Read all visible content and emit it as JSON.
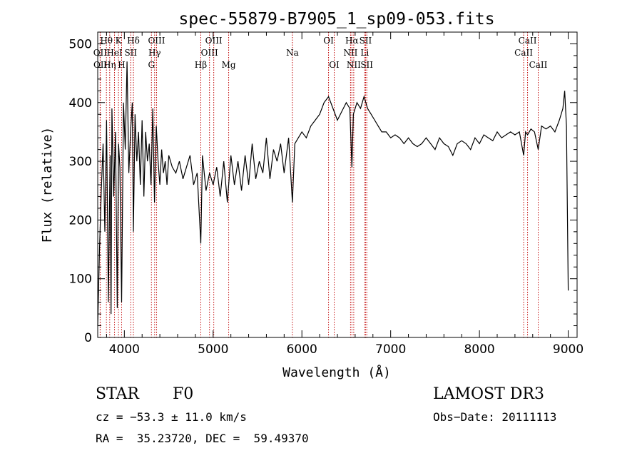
{
  "chart_data": {
    "type": "line",
    "title": "spec-55879-B7905_1_sp09-053.fits",
    "xlabel": "Wavelength (Å)",
    "ylabel": "Flux (relative)",
    "xlim": [
      3700,
      9100
    ],
    "ylim": [
      0,
      520
    ],
    "xticks": [
      4000,
      5000,
      6000,
      7000,
      8000,
      9000
    ],
    "yticks": [
      0,
      100,
      200,
      300,
      400,
      500
    ],
    "grid": false,
    "line_color": "#000000",
    "marker_color": "#c00000",
    "spectral_lines": [
      {
        "label": "Hθ",
        "wavelength": 3798,
        "row": 0
      },
      {
        "label": "OII",
        "wavelength": 3727,
        "row": 1
      },
      {
        "label": "OII",
        "wavelength": 3729,
        "row": 2
      },
      {
        "label": "Hη",
        "wavelength": 3835,
        "row": 2
      },
      {
        "label": "HeI",
        "wavelength": 3889,
        "row": 1
      },
      {
        "label": "K",
        "wavelength": 3934,
        "row": 0
      },
      {
        "label": "H",
        "wavelength": 3969,
        "row": 2
      },
      {
        "label": "SII",
        "wavelength": 4072,
        "row": 1
      },
      {
        "label": "Hδ",
        "wavelength": 4102,
        "row": 0
      },
      {
        "label": "OIII",
        "wavelength": 4363,
        "row": 0
      },
      {
        "label": "Hγ",
        "wavelength": 4341,
        "row": 1
      },
      {
        "label": "G",
        "wavelength": 4305,
        "row": 2
      },
      {
        "label": "Hβ",
        "wavelength": 4861,
        "row": 2
      },
      {
        "label": "OIII",
        "wavelength": 5007,
        "row": 0
      },
      {
        "label": "OIII",
        "wavelength": 4959,
        "row": 1
      },
      {
        "label": "Mg",
        "wavelength": 5175,
        "row": 2
      },
      {
        "label": "Na",
        "wavelength": 5893,
        "row": 1
      },
      {
        "label": "OI",
        "wavelength": 6300,
        "row": 0
      },
      {
        "label": "OI",
        "wavelength": 6364,
        "row": 2
      },
      {
        "label": "Hα",
        "wavelength": 6563,
        "row": 0
      },
      {
        "label": "NII",
        "wavelength": 6548,
        "row": 1
      },
      {
        "label": "NII",
        "wavelength": 6584,
        "row": 2
      },
      {
        "label": "SII",
        "wavelength": 6717,
        "row": 0
      },
      {
        "label": "Li",
        "wavelength": 6708,
        "row": 1
      },
      {
        "label": "SII",
        "wavelength": 6731,
        "row": 2
      },
      {
        "label": "CaII",
        "wavelength": 8542,
        "row": 0
      },
      {
        "label": "CaII",
        "wavelength": 8498,
        "row": 1
      },
      {
        "label": "CaII",
        "wavelength": 8662,
        "row": 2
      }
    ],
    "series": [
      {
        "x": [
          3700,
          3720,
          3740,
          3760,
          3780,
          3800,
          3820,
          3840,
          3850,
          3860,
          3880,
          3900,
          3920,
          3935,
          3950,
          3969,
          3990,
          4010,
          4030,
          4050,
          4070,
          4090,
          4102,
          4120,
          4140,
          4160,
          4180,
          4200,
          4220,
          4240,
          4260,
          4280,
          4300,
          4320,
          4340,
          4360,
          4380,
          4400,
          4420,
          4440,
          4460,
          4480,
          4500,
          4540,
          4580,
          4620,
          4660,
          4700,
          4740,
          4780,
          4820,
          4861,
          4880,
          4920,
          4960,
          5000,
          5040,
          5080,
          5120,
          5160,
          5200,
          5240,
          5280,
          5320,
          5360,
          5400,
          5440,
          5480,
          5520,
          5560,
          5600,
          5640,
          5680,
          5720,
          5760,
          5800,
          5850,
          5893,
          5920,
          5960,
          6000,
          6050,
          6100,
          6150,
          6200,
          6250,
          6300,
          6350,
          6400,
          6450,
          6500,
          6540,
          6563,
          6580,
          6620,
          6660,
          6700,
          6740,
          6780,
          6820,
          6860,
          6900,
          6950,
          7000,
          7050,
          7100,
          7150,
          7200,
          7250,
          7300,
          7350,
          7400,
          7450,
          7500,
          7550,
          7600,
          7650,
          7700,
          7750,
          7800,
          7850,
          7900,
          7950,
          8000,
          8050,
          8100,
          8150,
          8200,
          8250,
          8300,
          8350,
          8400,
          8450,
          8498,
          8520,
          8542,
          8580,
          8620,
          8662,
          8700,
          8750,
          8800,
          8850,
          8900,
          8940,
          8960,
          8980,
          9000
        ],
        "y": [
          20,
          150,
          250,
          330,
          180,
          370,
          60,
          310,
          40,
          390,
          240,
          350,
          50,
          330,
          290,
          60,
          400,
          320,
          470,
          280,
          350,
          400,
          180,
          380,
          300,
          350,
          260,
          370,
          240,
          350,
          300,
          330,
          260,
          390,
          230,
          360,
          300,
          260,
          320,
          280,
          300,
          260,
          310,
          290,
          280,
          300,
          270,
          290,
          310,
          260,
          280,
          160,
          310,
          250,
          280,
          260,
          290,
          240,
          300,
          230,
          310,
          260,
          300,
          250,
          310,
          260,
          330,
          270,
          300,
          280,
          340,
          270,
          320,
          300,
          330,
          280,
          340,
          230,
          330,
          340,
          350,
          340,
          360,
          370,
          380,
          400,
          410,
          390,
          370,
          385,
          400,
          390,
          290,
          380,
          400,
          390,
          410,
          390,
          380,
          370,
          360,
          350,
          350,
          340,
          345,
          340,
          330,
          340,
          330,
          325,
          330,
          340,
          330,
          320,
          340,
          330,
          325,
          310,
          330,
          335,
          330,
          320,
          340,
          330,
          345,
          340,
          335,
          350,
          340,
          345,
          350,
          345,
          350,
          310,
          350,
          345,
          355,
          350,
          320,
          360,
          355,
          360,
          350,
          370,
          390,
          420,
          360,
          80
        ]
      }
    ],
    "object_class": "STAR",
    "subclass": "F0",
    "survey": "LAMOST DR3",
    "redshift_text": "cz = −53.3 ± 11.0 km/s",
    "obs_date_text": "Obs−Date: 20111113",
    "coords_text": "RA =  35.23720, DEC =  59.49370"
  }
}
